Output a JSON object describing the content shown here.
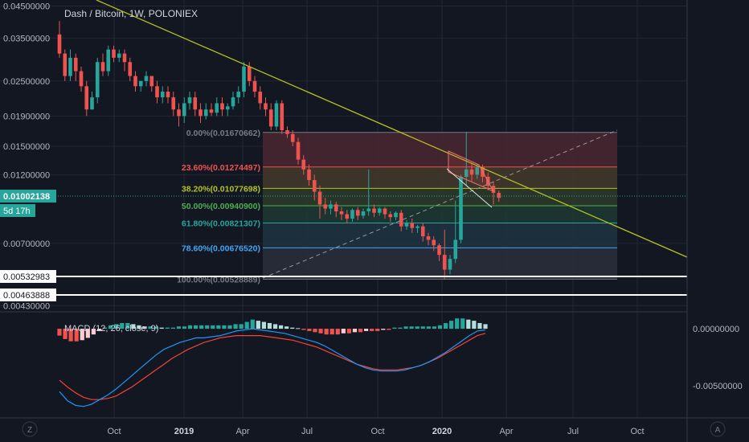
{
  "title": "Dash / Bitcoin, 1W, POLONIEX",
  "colors": {
    "background": "#131722",
    "grid": "#232736",
    "axis_text": "#b2b5be",
    "up": "#26a69a",
    "down": "#ef5350",
    "trendline": "#b5c21f",
    "macd_line": "#2196f3",
    "signal_line": "#f44336",
    "hist_up_strong": "#26a69a",
    "hist_up_weak": "#b2dfdb",
    "hist_down_strong": "#ef5350",
    "hist_down_weak": "#ffcdd2"
  },
  "price_axis": {
    "ticks": [
      "0.04500000",
      "0.03500000",
      "0.02500000",
      "0.01900000",
      "0.01500000",
      "0.01200000",
      "0.00700000",
      "0.00430000"
    ],
    "current_price": "0.01002138",
    "countdown": "5d 17h",
    "marked_levels": [
      "0.00532983",
      "0.00463888"
    ]
  },
  "time_axis": {
    "labels": [
      "Oct",
      "2019",
      "Apr",
      "Jul",
      "Oct",
      "2020",
      "Apr",
      "Jul",
      "Oct"
    ]
  },
  "macd": {
    "label": "MACD (12, 26, close, 9)",
    "ticks": [
      "0.00000000",
      "-0.00500000"
    ]
  },
  "fib_levels": [
    {
      "label": "0.00%(0.01670662)",
      "value": 0.01670662,
      "color": "#787b86",
      "fill": "#4a2730"
    },
    {
      "label": "23.60%(0.01274497)",
      "value": 0.01274497,
      "color": "#ef5350",
      "fill": "#44382a"
    },
    {
      "label": "38.20%(0.01077698)",
      "value": 0.01077698,
      "color": "#b5c21f",
      "fill": "#2e3b2a"
    },
    {
      "label": "50.00%(0.00940900)",
      "value": 0.009409,
      "color": "#4caf50",
      "fill": "#1f3a33"
    },
    {
      "label": "61.80%(0.00821307)",
      "value": 0.00821307,
      "color": "#26a69a",
      "fill": "#1e3442"
    },
    {
      "label": "78.60%(0.00676520)",
      "value": 0.0067652,
      "color": "#42a5f5",
      "fill": "#2b2e3b"
    },
    {
      "label": "100.00%(0.00528889)",
      "value": 0.00528889,
      "color": "#787b86"
    }
  ],
  "footer": {
    "left_button": "Z",
    "right_button": "A"
  },
  "chart_data": {
    "type": "candlestick",
    "title": "Dash / Bitcoin, 1W, POLONIEX",
    "scale": "log",
    "ylim": [
      0.0042,
      0.046
    ],
    "x_labels": [
      "Oct",
      "2019",
      "Apr",
      "Jul",
      "Oct",
      "2020",
      "Apr",
      "Jul",
      "Oct"
    ],
    "candles": [
      {
        "o": 0.036,
        "h": 0.04,
        "c": 0.031,
        "l": 0.03
      },
      {
        "o": 0.031,
        "h": 0.032,
        "c": 0.026,
        "l": 0.025
      },
      {
        "o": 0.026,
        "h": 0.032,
        "c": 0.03,
        "l": 0.025
      },
      {
        "o": 0.03,
        "h": 0.031,
        "c": 0.027,
        "l": 0.025
      },
      {
        "o": 0.027,
        "h": 0.028,
        "c": 0.024,
        "l": 0.023
      },
      {
        "o": 0.024,
        "h": 0.025,
        "c": 0.02,
        "l": 0.019
      },
      {
        "o": 0.02,
        "h": 0.023,
        "c": 0.022,
        "l": 0.02
      },
      {
        "o": 0.022,
        "h": 0.03,
        "c": 0.029,
        "l": 0.021
      },
      {
        "o": 0.029,
        "h": 0.031,
        "c": 0.027,
        "l": 0.026
      },
      {
        "o": 0.027,
        "h": 0.033,
        "c": 0.032,
        "l": 0.026
      },
      {
        "o": 0.032,
        "h": 0.033,
        "c": 0.03,
        "l": 0.029
      },
      {
        "o": 0.03,
        "h": 0.032,
        "c": 0.031,
        "l": 0.029
      },
      {
        "o": 0.031,
        "h": 0.032,
        "c": 0.029,
        "l": 0.027
      },
      {
        "o": 0.029,
        "h": 0.03,
        "c": 0.026,
        "l": 0.025
      },
      {
        "o": 0.026,
        "h": 0.027,
        "c": 0.024,
        "l": 0.023
      },
      {
        "o": 0.024,
        "h": 0.025,
        "c": 0.025,
        "l": 0.023
      },
      {
        "o": 0.025,
        "h": 0.027,
        "c": 0.026,
        "l": 0.024
      },
      {
        "o": 0.026,
        "h": 0.026,
        "c": 0.024,
        "l": 0.023
      },
      {
        "o": 0.024,
        "h": 0.025,
        "c": 0.022,
        "l": 0.021
      },
      {
        "o": 0.022,
        "h": 0.024,
        "c": 0.023,
        "l": 0.021
      },
      {
        "o": 0.023,
        "h": 0.024,
        "c": 0.022,
        "l": 0.021
      },
      {
        "o": 0.022,
        "h": 0.023,
        "c": 0.02,
        "l": 0.019
      },
      {
        "o": 0.02,
        "h": 0.021,
        "c": 0.019,
        "l": 0.0175
      },
      {
        "o": 0.019,
        "h": 0.022,
        "c": 0.021,
        "l": 0.018
      },
      {
        "o": 0.021,
        "h": 0.023,
        "c": 0.022,
        "l": 0.02
      },
      {
        "o": 0.022,
        "h": 0.023,
        "c": 0.02,
        "l": 0.019
      },
      {
        "o": 0.02,
        "h": 0.021,
        "c": 0.019,
        "l": 0.018
      },
      {
        "o": 0.019,
        "h": 0.021,
        "c": 0.02,
        "l": 0.0185
      },
      {
        "o": 0.02,
        "h": 0.021,
        "c": 0.0195,
        "l": 0.019
      },
      {
        "o": 0.0195,
        "h": 0.022,
        "c": 0.021,
        "l": 0.019
      },
      {
        "o": 0.021,
        "h": 0.022,
        "c": 0.02,
        "l": 0.019
      },
      {
        "o": 0.02,
        "h": 0.021,
        "c": 0.0205,
        "l": 0.019
      },
      {
        "o": 0.0205,
        "h": 0.023,
        "c": 0.022,
        "l": 0.02
      },
      {
        "o": 0.022,
        "h": 0.024,
        "c": 0.023,
        "l": 0.021
      },
      {
        "o": 0.023,
        "h": 0.029,
        "c": 0.028,
        "l": 0.022
      },
      {
        "o": 0.028,
        "h": 0.029,
        "c": 0.025,
        "l": 0.024
      },
      {
        "o": 0.025,
        "h": 0.026,
        "c": 0.023,
        "l": 0.022
      },
      {
        "o": 0.023,
        "h": 0.024,
        "c": 0.021,
        "l": 0.02
      },
      {
        "o": 0.021,
        "h": 0.022,
        "c": 0.02,
        "l": 0.019
      },
      {
        "o": 0.02,
        "h": 0.021,
        "c": 0.0175,
        "l": 0.017
      },
      {
        "o": 0.0175,
        "h": 0.0215,
        "c": 0.021,
        "l": 0.017
      },
      {
        "o": 0.021,
        "h": 0.0215,
        "c": 0.017,
        "l": 0.0165
      },
      {
        "o": 0.017,
        "h": 0.0175,
        "c": 0.0165,
        "l": 0.016
      },
      {
        "o": 0.0165,
        "h": 0.017,
        "c": 0.0155,
        "l": 0.015
      },
      {
        "o": 0.0155,
        "h": 0.016,
        "c": 0.0135,
        "l": 0.013
      },
      {
        "o": 0.0135,
        "h": 0.014,
        "c": 0.0125,
        "l": 0.012
      },
      {
        "o": 0.0125,
        "h": 0.013,
        "c": 0.0115,
        "l": 0.011
      },
      {
        "o": 0.0115,
        "h": 0.012,
        "c": 0.0105,
        "l": 0.0098
      },
      {
        "o": 0.0105,
        "h": 0.011,
        "c": 0.0095,
        "l": 0.0085
      },
      {
        "o": 0.0095,
        "h": 0.01,
        "c": 0.0092,
        "l": 0.0088
      },
      {
        "o": 0.0092,
        "h": 0.0098,
        "c": 0.0095,
        "l": 0.0088
      },
      {
        "o": 0.0095,
        "h": 0.0097,
        "c": 0.009,
        "l": 0.0086
      },
      {
        "o": 0.009,
        "h": 0.0093,
        "c": 0.0088,
        "l": 0.0084
      },
      {
        "o": 0.0088,
        "h": 0.0091,
        "c": 0.0085,
        "l": 0.0082
      },
      {
        "o": 0.0085,
        "h": 0.0092,
        "c": 0.0091,
        "l": 0.0083
      },
      {
        "o": 0.0091,
        "h": 0.0093,
        "c": 0.0087,
        "l": 0.0084
      },
      {
        "o": 0.0087,
        "h": 0.0092,
        "c": 0.009,
        "l": 0.0085
      },
      {
        "o": 0.009,
        "h": 0.0125,
        "c": 0.0092,
        "l": 0.0087
      },
      {
        "o": 0.0092,
        "h": 0.0095,
        "c": 0.0089,
        "l": 0.0086
      },
      {
        "o": 0.0089,
        "h": 0.0093,
        "c": 0.0092,
        "l": 0.0087
      },
      {
        "o": 0.0092,
        "h": 0.0093,
        "c": 0.0088,
        "l": 0.0085
      },
      {
        "o": 0.0088,
        "h": 0.009,
        "c": 0.0086,
        "l": 0.0083
      },
      {
        "o": 0.0086,
        "h": 0.009,
        "c": 0.0089,
        "l": 0.0084
      },
      {
        "o": 0.0089,
        "h": 0.0091,
        "c": 0.008,
        "l": 0.0077
      },
      {
        "o": 0.008,
        "h": 0.0084,
        "c": 0.0082,
        "l": 0.0078
      },
      {
        "o": 0.0082,
        "h": 0.0085,
        "c": 0.0079,
        "l": 0.0076
      },
      {
        "o": 0.0079,
        "h": 0.0081,
        "c": 0.008,
        "l": 0.0076
      },
      {
        "o": 0.008,
        "h": 0.0082,
        "c": 0.0074,
        "l": 0.0071
      },
      {
        "o": 0.0074,
        "h": 0.0076,
        "c": 0.0072,
        "l": 0.0069
      },
      {
        "o": 0.0072,
        "h": 0.0074,
        "c": 0.0069,
        "l": 0.0066
      },
      {
        "o": 0.0069,
        "h": 0.007,
        "c": 0.0064,
        "l": 0.0061
      },
      {
        "o": 0.0064,
        "h": 0.0078,
        "c": 0.0057,
        "l": 0.0053
      },
      {
        "o": 0.0057,
        "h": 0.0064,
        "c": 0.0062,
        "l": 0.0055
      },
      {
        "o": 0.0062,
        "h": 0.0098,
        "c": 0.0072,
        "l": 0.006
      },
      {
        "o": 0.0072,
        "h": 0.012,
        "c": 0.0118,
        "l": 0.007
      },
      {
        "o": 0.0118,
        "h": 0.0168,
        "c": 0.0125,
        "l": 0.011
      },
      {
        "o": 0.0125,
        "h": 0.0132,
        "c": 0.012,
        "l": 0.0114
      },
      {
        "o": 0.012,
        "h": 0.013,
        "c": 0.0127,
        "l": 0.0116
      },
      {
        "o": 0.0127,
        "h": 0.013,
        "c": 0.0118,
        "l": 0.0113
      },
      {
        "o": 0.0118,
        "h": 0.0122,
        "c": 0.011,
        "l": 0.0106
      },
      {
        "o": 0.011,
        "h": 0.0114,
        "c": 0.0104,
        "l": 0.0095
      },
      {
        "o": 0.0104,
        "h": 0.0106,
        "c": 0.01,
        "l": 0.0097
      }
    ],
    "macd": {
      "label": "MACD (12, 26, close, 9)",
      "ylim": [
        -0.0078,
        0.0012
      ],
      "histogram": [
        -0.0006,
        -0.0009,
        -0.0011,
        -0.0011,
        -0.001,
        -0.0008,
        -0.0005,
        -0.0002,
        0.0001,
        0.0003,
        0.0004,
        0.0005,
        0.0005,
        0.0004,
        0.0003,
        0.0002,
        0.0002,
        0.0002,
        0.0001,
        0.0001,
        0.0001,
        0.0002,
        0.0002,
        0.0003,
        0.0003,
        0.0003,
        0.0003,
        0.0003,
        0.0003,
        0.0003,
        0.0003,
        0.0004,
        0.0004,
        0.0006,
        0.0008,
        0.0007,
        0.0006,
        0.0005,
        0.0004,
        0.0003,
        0.0002,
        0.0001,
        5e-05,
        -0.0001,
        -0.0002,
        -0.0003,
        -0.0004,
        -0.0005,
        -0.0005,
        -0.0005,
        -0.0004,
        -0.0004,
        -0.0003,
        -0.0003,
        -0.0002,
        -0.0002,
        -0.0002,
        -0.0001,
        -0.0001,
        0.0001,
        0.0001,
        0.0002,
        0.0002,
        0.0002,
        0.0002,
        0.0002,
        0.0002,
        0.0003,
        0.0005,
        0.0007,
        0.0009,
        0.0009,
        0.0008,
        0.0007,
        0.0005,
        0.0004
      ],
      "macd_line": [
        -0.0055,
        -0.0063,
        -0.0067,
        -0.0068,
        -0.0066,
        -0.0062,
        -0.0058,
        -0.0053,
        -0.0047,
        -0.0041,
        -0.0035,
        -0.0029,
        -0.0023,
        -0.0018,
        -0.0015,
        -0.0012,
        -0.001,
        -0.0008,
        -0.0008,
        -0.0007,
        -0.0006,
        -0.0004,
        -0.0002,
        -0.0001,
        0.0,
        -0.0001,
        -0.0002,
        -0.0003,
        -0.0004,
        -0.0006,
        -0.0008,
        -0.001,
        -0.0012,
        -0.0015,
        -0.0019,
        -0.0023,
        -0.0027,
        -0.0031,
        -0.0034,
        -0.0036,
        -0.0037,
        -0.0037,
        -0.0037,
        -0.0036,
        -0.0034,
        -0.0032,
        -0.0029,
        -0.0025,
        -0.0021,
        -0.0016,
        -0.0011,
        -0.0006,
        -0.0002,
        -0.0001
      ],
      "signal_line": [
        -0.0045,
        -0.0051,
        -0.0056,
        -0.006,
        -0.0062,
        -0.0062,
        -0.0061,
        -0.0059,
        -0.0055,
        -0.0051,
        -0.0046,
        -0.0041,
        -0.0036,
        -0.0031,
        -0.0026,
        -0.0022,
        -0.0018,
        -0.0015,
        -0.0012,
        -0.001,
        -0.0008,
        -0.0007,
        -0.0006,
        -0.0006,
        -0.0006,
        -0.0006,
        -0.0007,
        -0.0008,
        -0.0009,
        -0.001,
        -0.0012,
        -0.0014,
        -0.0016,
        -0.0019,
        -0.0022,
        -0.0025,
        -0.0028,
        -0.0031,
        -0.0033,
        -0.0035,
        -0.0036,
        -0.0036,
        -0.0036,
        -0.0035,
        -0.0034,
        -0.0032,
        -0.0029,
        -0.0026,
        -0.0022,
        -0.0018,
        -0.0014,
        -0.001,
        -0.0006,
        -0.0004
      ]
    }
  }
}
